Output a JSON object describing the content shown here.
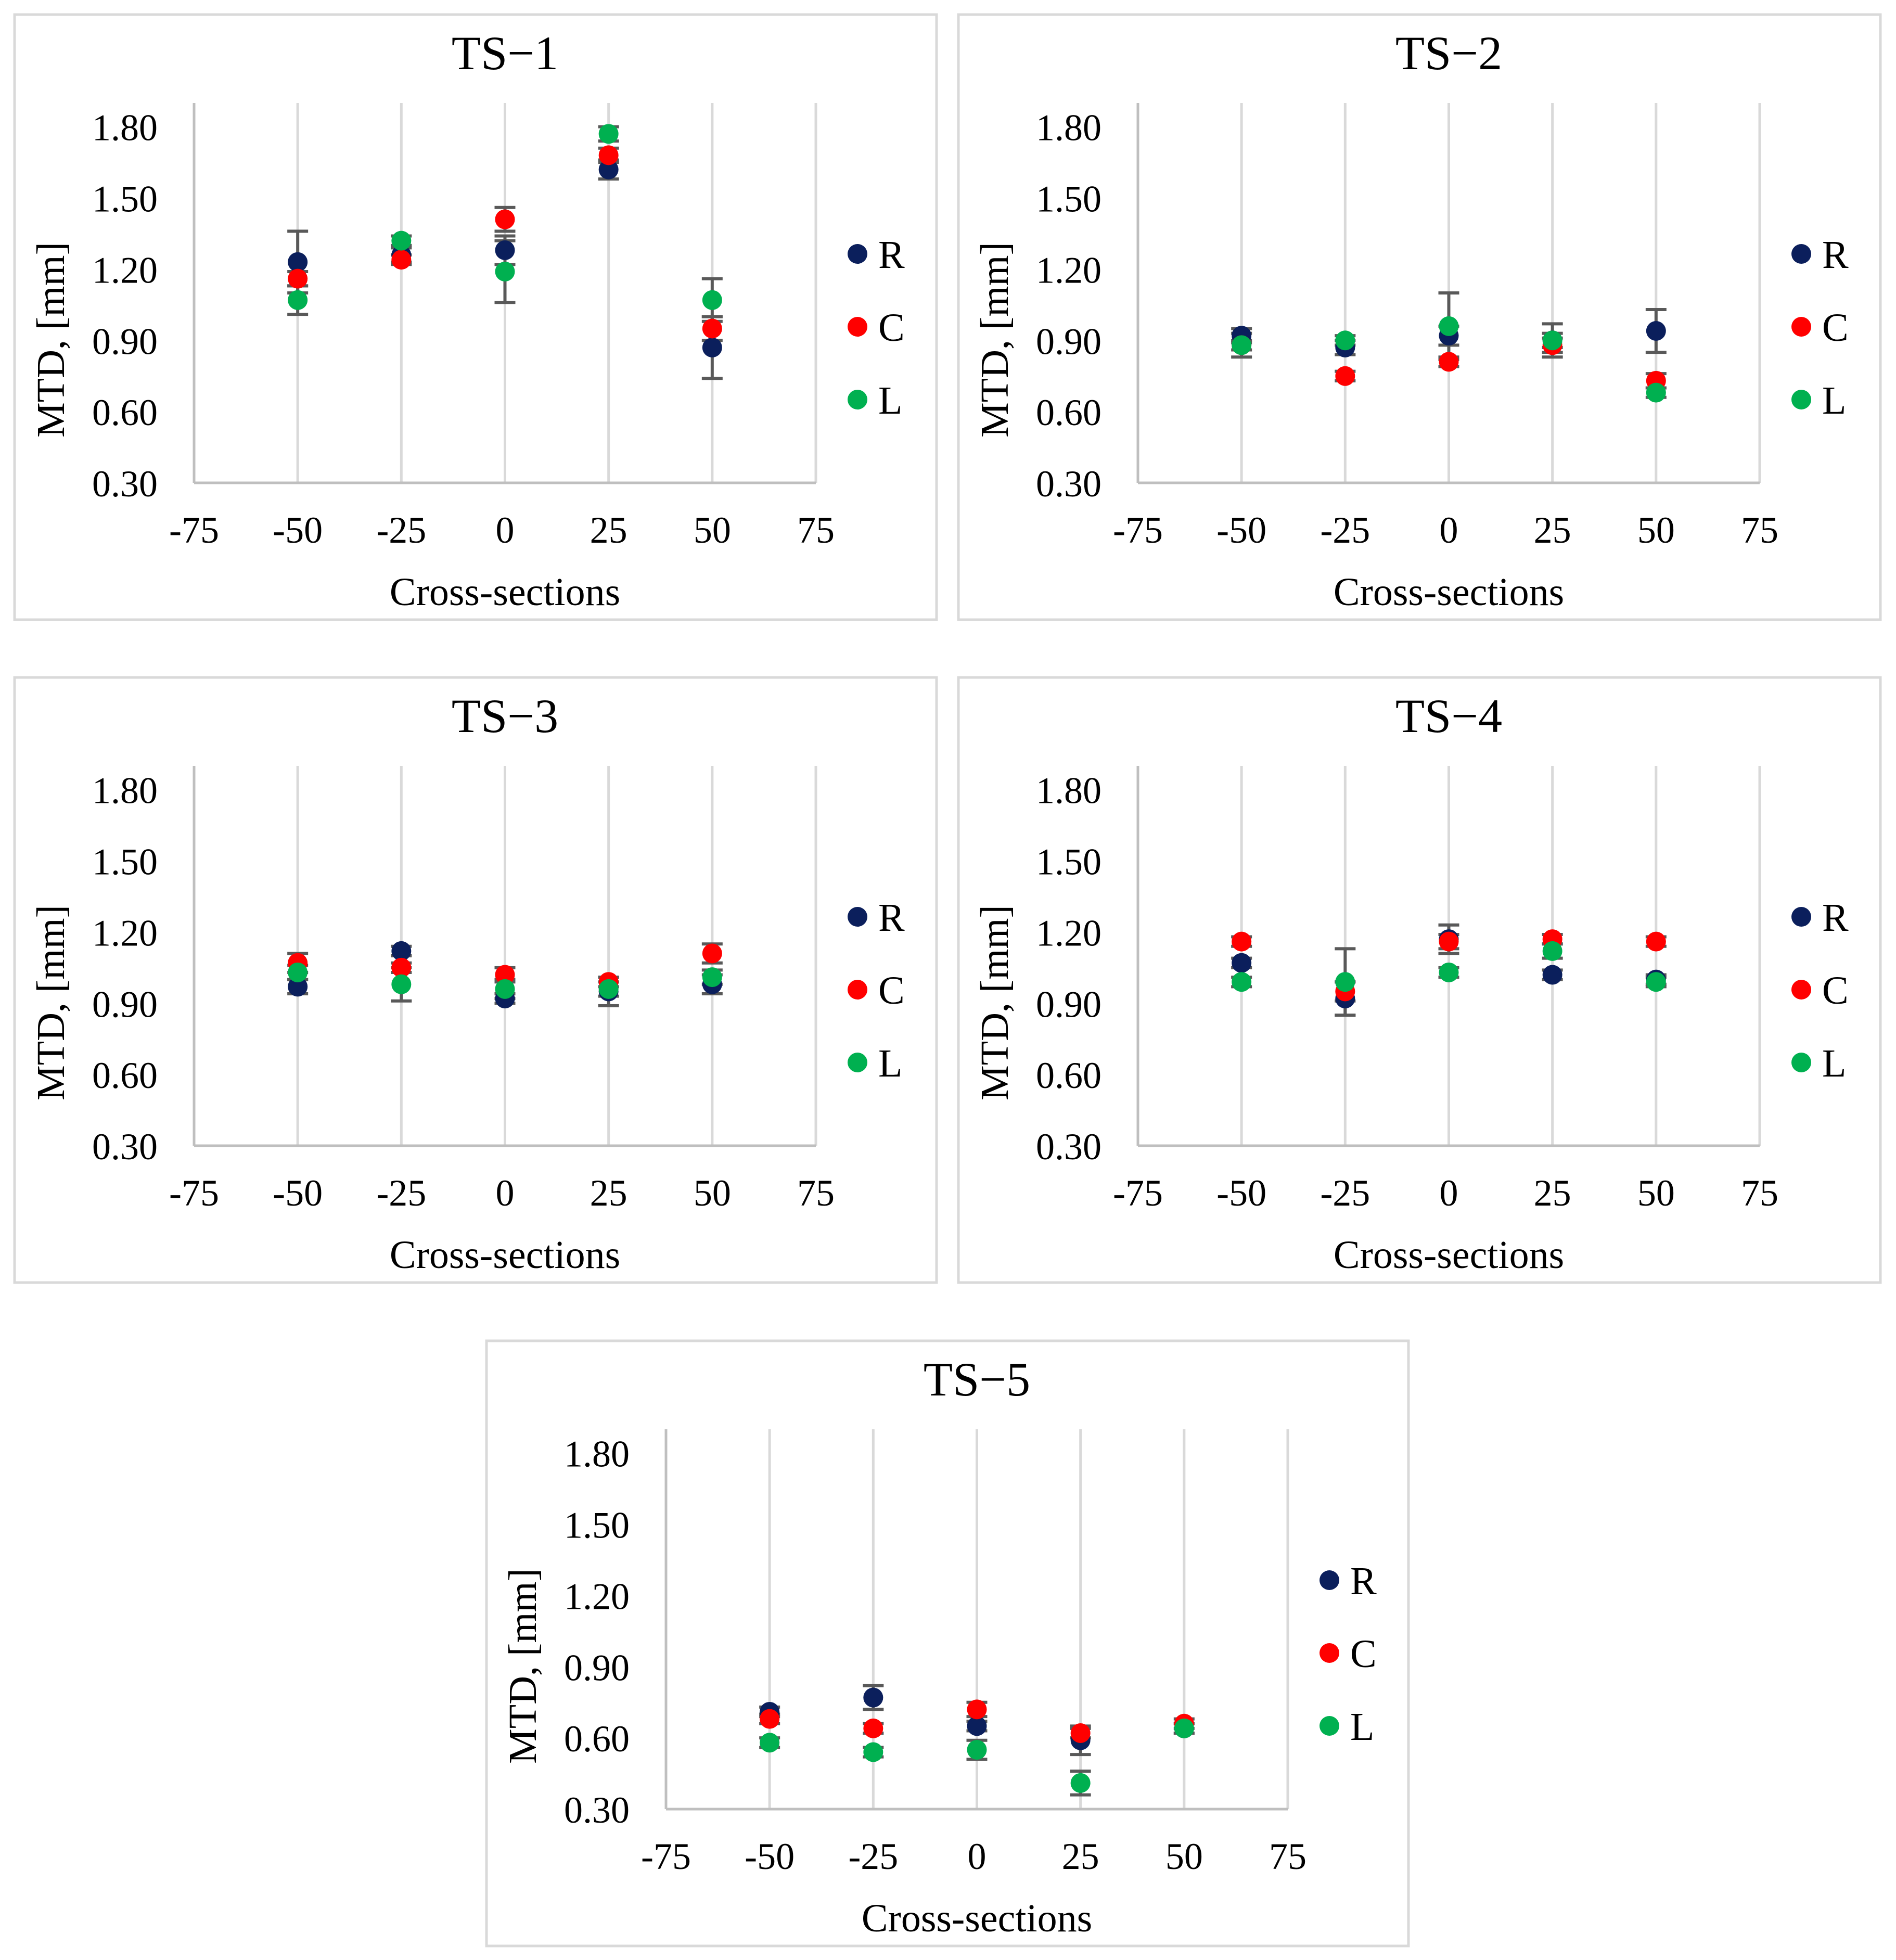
{
  "chart_data": [
    {
      "type": "scatter",
      "title": "TS−1",
      "xlabel": "Cross-sections",
      "ylabel": "MTD, [mm]",
      "xlim": [
        -75,
        75
      ],
      "ylim": [
        0.3,
        1.9
      ],
      "x_ticks": [
        -75,
        -50,
        -25,
        0,
        25,
        50,
        75
      ],
      "x_tick_labels": [
        "-75",
        "-50",
        "-25",
        "0",
        "25",
        "50",
        "75"
      ],
      "y_ticks": [
        0.3,
        0.6,
        0.9,
        1.2,
        1.5,
        1.8
      ],
      "y_tick_labels": [
        "0.30",
        "0.60",
        "0.90",
        "1.20",
        "1.50",
        "1.80"
      ],
      "grid": true,
      "legend_position": "right",
      "series": [
        {
          "name": "R",
          "color": "#0b1f5c",
          "x": [
            -50,
            -25,
            0,
            25,
            50
          ],
          "values": [
            1.23,
            1.26,
            1.28,
            1.62,
            0.87
          ],
          "errors": [
            0.13,
            0.03,
            0.06,
            0.04,
            0.13
          ]
        },
        {
          "name": "C",
          "color": "#ff0000",
          "x": [
            -50,
            -25,
            0,
            25,
            50
          ],
          "values": [
            1.16,
            1.24,
            1.41,
            1.68,
            0.95
          ],
          "errors": [
            0.03,
            0.02,
            0.05,
            0.03,
            0.05
          ]
        },
        {
          "name": "L",
          "color": "#00b050",
          "x": [
            -50,
            -25,
            0,
            25,
            50
          ],
          "values": [
            1.07,
            1.32,
            1.19,
            1.77,
            1.07
          ],
          "errors": [
            0.06,
            0.02,
            0.13,
            0.03,
            0.09
          ]
        }
      ]
    },
    {
      "type": "scatter",
      "title": "TS−2",
      "xlabel": "Cross-sections",
      "ylabel": "MTD, [mm]",
      "xlim": [
        -75,
        75
      ],
      "ylim": [
        0.3,
        1.9
      ],
      "x_ticks": [
        -75,
        -50,
        -25,
        0,
        25,
        50,
        75
      ],
      "x_tick_labels": [
        "-75",
        "-50",
        "-25",
        "0",
        "25",
        "50",
        "75"
      ],
      "y_ticks": [
        0.3,
        0.6,
        0.9,
        1.2,
        1.5,
        1.8
      ],
      "y_tick_labels": [
        "0.30",
        "0.60",
        "0.90",
        "1.20",
        "1.50",
        "1.80"
      ],
      "grid": true,
      "legend_position": "right",
      "series": [
        {
          "name": "R",
          "color": "#0b1f5c",
          "x": [
            -50,
            -25,
            0,
            25,
            50
          ],
          "values": [
            0.92,
            0.87,
            0.92,
            0.9,
            0.94
          ],
          "errors": [
            0.03,
            0.03,
            0.04,
            0.07,
            0.09
          ]
        },
        {
          "name": "C",
          "color": "#ff0000",
          "x": [
            -50,
            -25,
            0,
            25,
            50
          ],
          "values": [
            0.88,
            0.75,
            0.81,
            0.88,
            0.73
          ],
          "errors": [
            0.02,
            0.02,
            0.02,
            0.03,
            0.03
          ]
        },
        {
          "name": "L",
          "color": "#00b050",
          "x": [
            -50,
            -25,
            0,
            25,
            50
          ],
          "values": [
            0.88,
            0.9,
            0.96,
            0.9,
            0.68
          ],
          "errors": [
            0.05,
            0.02,
            0.14,
            0.03,
            0.02
          ]
        }
      ]
    },
    {
      "type": "scatter",
      "title": "TS−3",
      "xlabel": "Cross-sections",
      "ylabel": "MTD, [mm]",
      "xlim": [
        -75,
        75
      ],
      "ylim": [
        0.3,
        1.9
      ],
      "x_ticks": [
        -75,
        -50,
        -25,
        0,
        25,
        50,
        75
      ],
      "x_tick_labels": [
        "-75",
        "-50",
        "-25",
        "0",
        "25",
        "50",
        "75"
      ],
      "y_ticks": [
        0.3,
        0.6,
        0.9,
        1.2,
        1.5,
        1.8
      ],
      "y_tick_labels": [
        "0.30",
        "0.60",
        "0.90",
        "1.20",
        "1.50",
        "1.80"
      ],
      "grid": true,
      "legend_position": "right",
      "series": [
        {
          "name": "R",
          "color": "#0b1f5c",
          "x": [
            -50,
            -25,
            0,
            25,
            50
          ],
          "values": [
            0.97,
            1.12,
            0.92,
            0.95,
            0.98
          ],
          "errors": [
            0.03,
            0.02,
            0.02,
            0.06,
            0.04
          ]
        },
        {
          "name": "C",
          "color": "#ff0000",
          "x": [
            -50,
            -25,
            0,
            25,
            50
          ],
          "values": [
            1.07,
            1.05,
            1.02,
            0.99,
            1.11
          ],
          "errors": [
            0.04,
            0.02,
            0.03,
            0.02,
            0.04
          ]
        },
        {
          "name": "L",
          "color": "#00b050",
          "x": [
            -50,
            -25,
            0,
            25,
            50
          ],
          "values": [
            1.03,
            0.98,
            0.96,
            0.96,
            1.01
          ],
          "errors": [
            0.03,
            0.07,
            0.04,
            0.03,
            0.03
          ]
        }
      ]
    },
    {
      "type": "scatter",
      "title": "TS−4",
      "xlabel": "Cross-sections",
      "ylabel": "MTD, [mm]",
      "xlim": [
        -75,
        75
      ],
      "ylim": [
        0.3,
        1.9
      ],
      "x_ticks": [
        -75,
        -50,
        -25,
        0,
        25,
        50,
        75
      ],
      "x_tick_labels": [
        "-75",
        "-50",
        "-25",
        "0",
        "25",
        "50",
        "75"
      ],
      "y_ticks": [
        0.3,
        0.6,
        0.9,
        1.2,
        1.5,
        1.8
      ],
      "y_tick_labels": [
        "0.30",
        "0.60",
        "0.90",
        "1.20",
        "1.50",
        "1.80"
      ],
      "grid": true,
      "legend_position": "right",
      "series": [
        {
          "name": "R",
          "color": "#0b1f5c",
          "x": [
            -50,
            -25,
            0,
            25,
            50
          ],
          "values": [
            1.07,
            0.92,
            1.17,
            1.02,
            1.0
          ],
          "errors": [
            0.02,
            0.07,
            0.06,
            0.02,
            0.02
          ]
        },
        {
          "name": "C",
          "color": "#ff0000",
          "x": [
            -50,
            -25,
            0,
            25,
            50
          ],
          "values": [
            1.16,
            0.95,
            1.16,
            1.17,
            1.16
          ],
          "errors": [
            0.02,
            0.04,
            0.03,
            0.02,
            0.02
          ]
        },
        {
          "name": "L",
          "color": "#00b050",
          "x": [
            -50,
            -25,
            0,
            25,
            50
          ],
          "values": [
            0.99,
            0.99,
            1.03,
            1.12,
            0.99
          ],
          "errors": [
            0.02,
            0.14,
            0.02,
            0.03,
            0.02
          ]
        }
      ]
    },
    {
      "type": "scatter",
      "title": "TS−5",
      "xlabel": "Cross-sections",
      "ylabel": "MTD, [mm]",
      "xlim": [
        -75,
        75
      ],
      "ylim": [
        0.3,
        1.9
      ],
      "x_ticks": [
        -75,
        -50,
        -25,
        0,
        25,
        50,
        75
      ],
      "x_tick_labels": [
        "-75",
        "-50",
        "-25",
        "0",
        "25",
        "50",
        "75"
      ],
      "y_ticks": [
        0.3,
        0.6,
        0.9,
        1.2,
        1.5,
        1.8
      ],
      "y_tick_labels": [
        "0.30",
        "0.60",
        "0.90",
        "1.20",
        "1.50",
        "1.80"
      ],
      "grid": true,
      "legend_position": "right",
      "series": [
        {
          "name": "R",
          "color": "#0b1f5c",
          "x": [
            -50,
            -25,
            0,
            25,
            50
          ],
          "values": [
            0.71,
            0.77,
            0.65,
            0.59,
            0.64
          ],
          "errors": [
            0.02,
            0.05,
            0.02,
            0.06,
            0.02
          ]
        },
        {
          "name": "C",
          "color": "#ff0000",
          "x": [
            -50,
            -25,
            0,
            25,
            50
          ],
          "values": [
            0.68,
            0.64,
            0.72,
            0.62,
            0.66
          ],
          "errors": [
            0.02,
            0.02,
            0.03,
            0.02,
            0.02
          ]
        },
        {
          "name": "L",
          "color": "#00b050",
          "x": [
            -50,
            -25,
            0,
            25,
            50
          ],
          "values": [
            0.58,
            0.54,
            0.55,
            0.41,
            0.64
          ],
          "errors": [
            0.02,
            0.02,
            0.04,
            0.05,
            0.02
          ]
        }
      ]
    }
  ]
}
